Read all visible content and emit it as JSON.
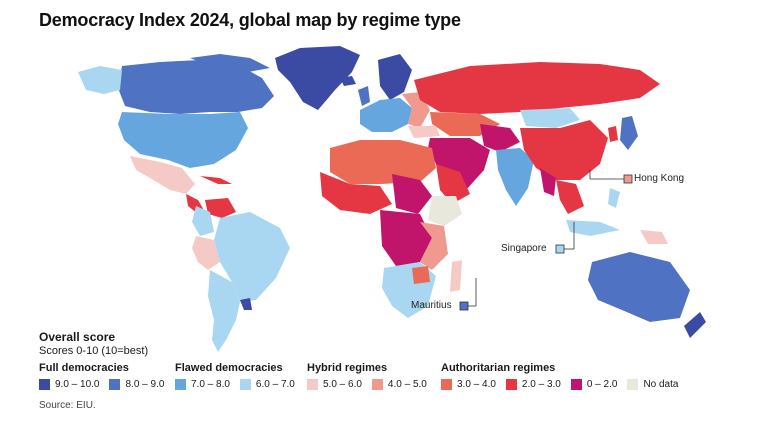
{
  "title": "Democracy Index 2024, global map by regime type",
  "colors": {
    "full_high": "#3b4aa3",
    "full_low": "#4f73c2",
    "flawed_high": "#64a6dd",
    "flawed_low": "#a9d7f1",
    "hybrid_high": "#f5c9c6",
    "hybrid_low": "#f0998e",
    "auth_high": "#ea6a55",
    "auth_mid": "#e43743",
    "auth_low": "#c0156b",
    "no_data": "#e8e8dc"
  },
  "callouts": {
    "hong_kong": "Hong Kong",
    "singapore": "Singapore",
    "mauritius": "Mauritius"
  },
  "legend": {
    "heading": "Overall score",
    "subheading": "Scores 0-10 (10=best)",
    "groups": [
      {
        "name": "Full democracies",
        "items": [
          {
            "label": "9.0 – 10.0",
            "color": "#3b4aa3"
          },
          {
            "label": "8.0 – 9.0",
            "color": "#4f73c2"
          }
        ]
      },
      {
        "name": "Flawed democracies",
        "items": [
          {
            "label": "7.0 – 8.0",
            "color": "#64a6dd"
          },
          {
            "label": "6.0 – 7.0",
            "color": "#a9d7f1"
          }
        ]
      },
      {
        "name": "Hybrid regimes",
        "items": [
          {
            "label": "5.0 – 6.0",
            "color": "#f5c9c6"
          },
          {
            "label": "4.0 – 5.0",
            "color": "#f0998e"
          }
        ]
      },
      {
        "name": "Authoritarian regimes",
        "items": [
          {
            "label": "3.0 – 4.0",
            "color": "#ea6a55"
          },
          {
            "label": "2.0 – 3.0",
            "color": "#e43743"
          },
          {
            "label": "0 – 2.0",
            "color": "#c0156b"
          },
          {
            "label": "No data",
            "color": "#e8e8dc"
          }
        ]
      }
    ]
  },
  "source": "Source: EIU."
}
